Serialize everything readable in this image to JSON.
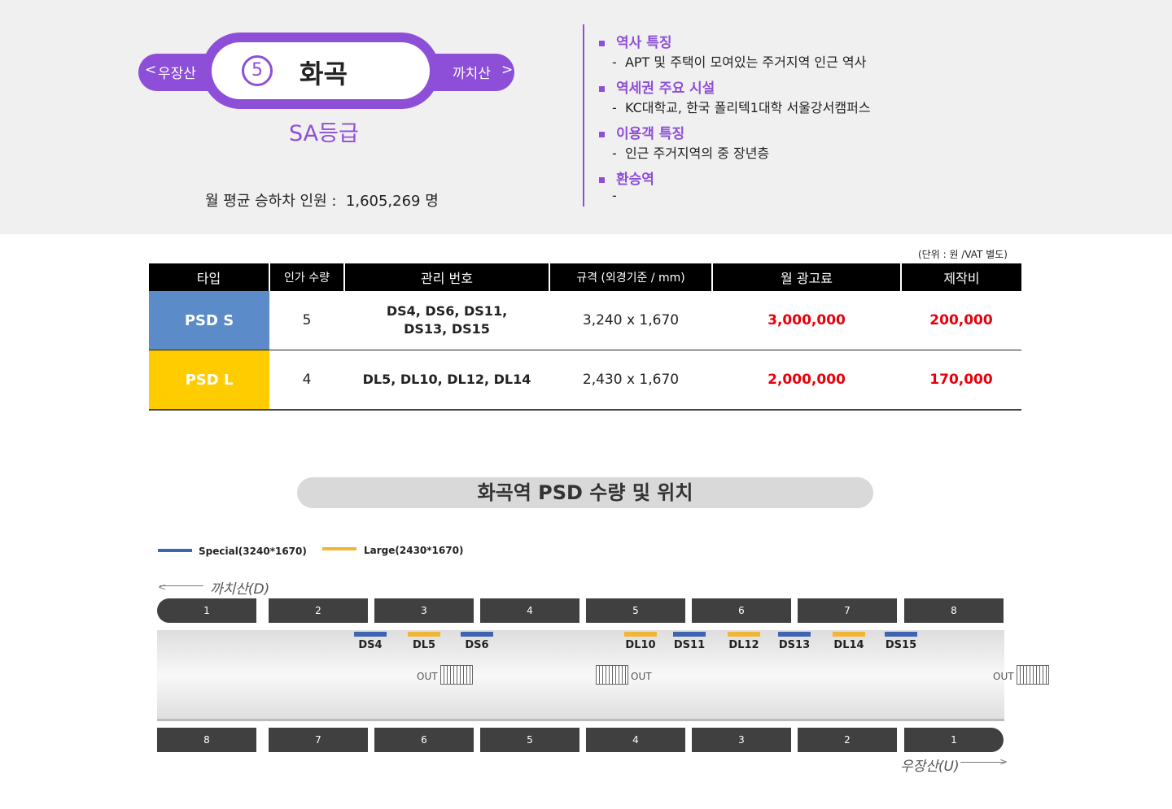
{
  "station": {
    "prev": "우장산",
    "next": "까치산",
    "number": "5",
    "name": "화곡",
    "grade": "SA등급",
    "ridership_label": "월 평균 승하차 인원 :",
    "ridership_value": "1,605,269 명"
  },
  "info": [
    {
      "heading": "역사 특징",
      "detail": "APT 및 주택이 모여있는 주거지역 인근 역사"
    },
    {
      "heading": "역세권 주요 시설",
      "detail": "KC대학교, 한국 폴리텍1대학 서울강서캠퍼스"
    },
    {
      "heading": "이용객 특징",
      "detail": "인근 주거지역의 중 장년층"
    },
    {
      "heading": "환승역",
      "detail": ""
    }
  ],
  "table": {
    "unit_note": "(단위 : 원 /VAT 별도)",
    "headers": [
      "타입",
      "인가 수량",
      "관리 번호",
      "규격 (외경기준 / mm)",
      "월 광고료",
      "제작비"
    ],
    "rows": [
      {
        "type": "PSD S",
        "qty": "5",
        "ids_1": "DS4, DS6, DS11,",
        "ids_2": "DS13, DS15",
        "size": "3,240 x 1,670",
        "fee": "3,000,000",
        "production": "200,000"
      },
      {
        "type": "PSD L",
        "qty": "4",
        "ids_1": "DL5, DL10, DL12, DL14",
        "ids_2": "",
        "size": "2,430 x 1,670",
        "fee": "2,000,000",
        "production": "170,000"
      }
    ]
  },
  "section_title": "화곡역  PSD 수량 및 위치",
  "legend": [
    {
      "label": "Special(3240*1670)",
      "color": "#3e64b3"
    },
    {
      "label": "Large(2430*1670)",
      "color": "#f2b535"
    }
  ],
  "directions": {
    "down": "까치산(D)",
    "up": "우장산(U)"
  },
  "top_cars": [
    "1",
    "2",
    "3",
    "4",
    "5",
    "6",
    "7",
    "8"
  ],
  "bottom_cars": [
    "8",
    "7",
    "6",
    "5",
    "4",
    "3",
    "2",
    "1"
  ],
  "psd_labels": [
    "DS4",
    "DL5",
    "DS6",
    "DL10",
    "DS11",
    "DL12",
    "DS13",
    "DL14",
    "DS15"
  ],
  "out_label": "OUT",
  "colors": {
    "accent": "#8e4fd8",
    "special": "#3e64b3",
    "large": "#f2b535",
    "price": "#e8000b"
  }
}
